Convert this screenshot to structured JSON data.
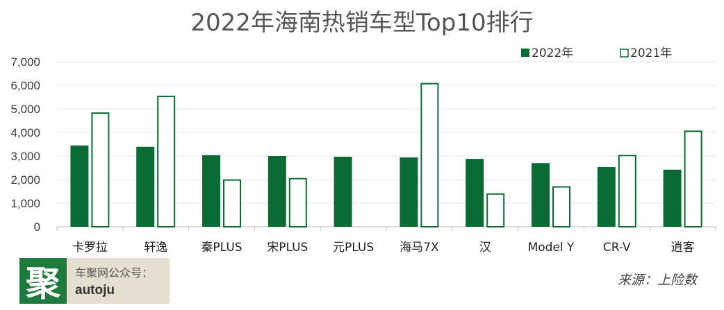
{
  "chart_data": {
    "type": "bar",
    "title": "2022年海南热销车型Top10排行",
    "categories": [
      "卡罗拉",
      "轩逸",
      "秦PLUS",
      "宋PLUS",
      "元PLUS",
      "海马7X",
      "汉",
      "Model Y",
      "CR-V",
      "逍客"
    ],
    "series": [
      {
        "name": "2022年",
        "values": [
          3450,
          3390,
          3040,
          3000,
          2970,
          2940,
          2880,
          2700,
          2530,
          2420
        ],
        "style": "filled",
        "color": "#0a6b35"
      },
      {
        "name": "2021年",
        "values": [
          4850,
          5560,
          2010,
          2070,
          null,
          6100,
          1420,
          1720,
          3050,
          4080
        ],
        "style": "outline",
        "color": "#0a6b35"
      }
    ],
    "ylim": [
      0,
      7000
    ],
    "yticks": [
      "0",
      "1,000",
      "2,000",
      "3,000",
      "4,000",
      "5,000",
      "6,000",
      "7,000"
    ],
    "ytick_values": [
      0,
      1000,
      2000,
      3000,
      4000,
      5000,
      6000,
      7000
    ],
    "grid": true,
    "legend": "top-right"
  },
  "source": "来源：上险数",
  "brand": {
    "logo_char": "聚",
    "name": "车聚网公众号：",
    "handle": "autoju"
  },
  "colors": {
    "bar": "#0a6b35",
    "grid": "#e6e6e6",
    "axis": "#bfbfbf"
  }
}
